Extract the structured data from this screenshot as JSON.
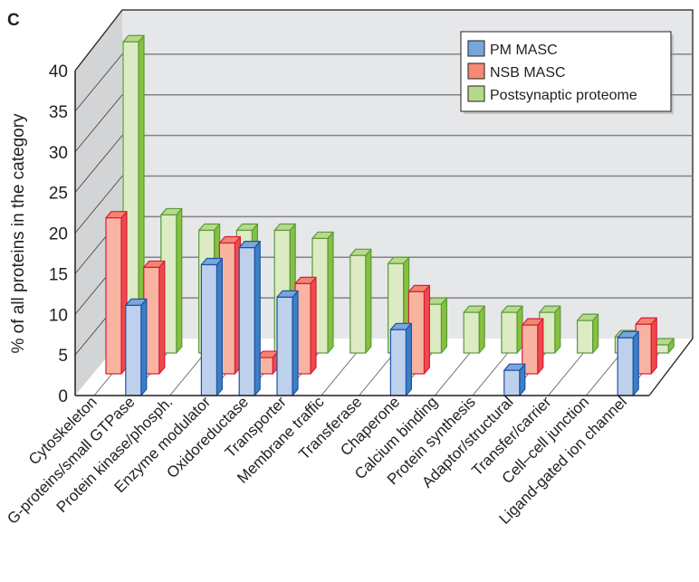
{
  "panel_label": "C",
  "chart_data": {
    "type": "bar",
    "style": "3d-grouped-depth",
    "title": "",
    "xlabel": "",
    "ylabel": "% of all proteins in the category",
    "ylim": [
      0,
      40
    ],
    "yticks": [
      0,
      5,
      10,
      15,
      20,
      25,
      30,
      35,
      40
    ],
    "grid": true,
    "legend_position": "top-right",
    "categories": [
      "Cytoskeleton",
      "G-proteins/small GTPase",
      "Protein kinase/phosph.",
      "Enzyme modulator",
      "Oxidoreductase",
      "Transporter",
      "Membrane traffic",
      "Transferase",
      "Chaperone",
      "Calcium binding",
      "Protein synthesis",
      "Adaptor/structural",
      "Transfer/carrier",
      "Cell–cell junction",
      "Ligand-gated ion channel"
    ],
    "series": [
      {
        "name": "PM MASC",
        "colors": {
          "front": "#bdd1ed",
          "side": "#3b7fc7",
          "top": "#7ba6dc",
          "stroke": "#1f51a3"
        },
        "values": [
          0,
          11.1,
          0,
          16.1,
          18.2,
          12.1,
          0,
          0,
          8.1,
          0,
          0,
          3.1,
          0,
          0,
          7.1
        ]
      },
      {
        "name": "NSB MASC",
        "colors": {
          "front": "#f9b4a1",
          "side": "#ef4a4a",
          "top": "#f4846f",
          "stroke": "#d81a3c"
        },
        "values": [
          19.2,
          13.1,
          0,
          16.1,
          2.0,
          11.1,
          0,
          0,
          10.1,
          0,
          0,
          6.0,
          0,
          0,
          6.1
        ]
      },
      {
        "name": "Postsynaptic proteome",
        "colors": {
          "front": "#ddebc4",
          "side": "#86c03f",
          "top": "#b7d98b",
          "stroke": "#5b9a3b"
        },
        "values": [
          38.3,
          17.0,
          15.1,
          15.1,
          15.1,
          14.1,
          12.0,
          11.0,
          6.0,
          5.0,
          5.0,
          5.0,
          4.0,
          2.0,
          1.0
        ]
      }
    ]
  },
  "legend": {
    "items": [
      {
        "label": "PM MASC",
        "swatch": "#78a6dc"
      },
      {
        "label": "NSB MASC",
        "swatch": "#f58b74"
      },
      {
        "label": "Postsynaptic proteome",
        "swatch": "#b5d98a"
      }
    ]
  },
  "colors": {
    "back_wall": "#e6e7e9",
    "side_wall": "#d3d4d6",
    "floor": "#ffffff",
    "gridline": "#808285",
    "axis": "#231f20"
  }
}
